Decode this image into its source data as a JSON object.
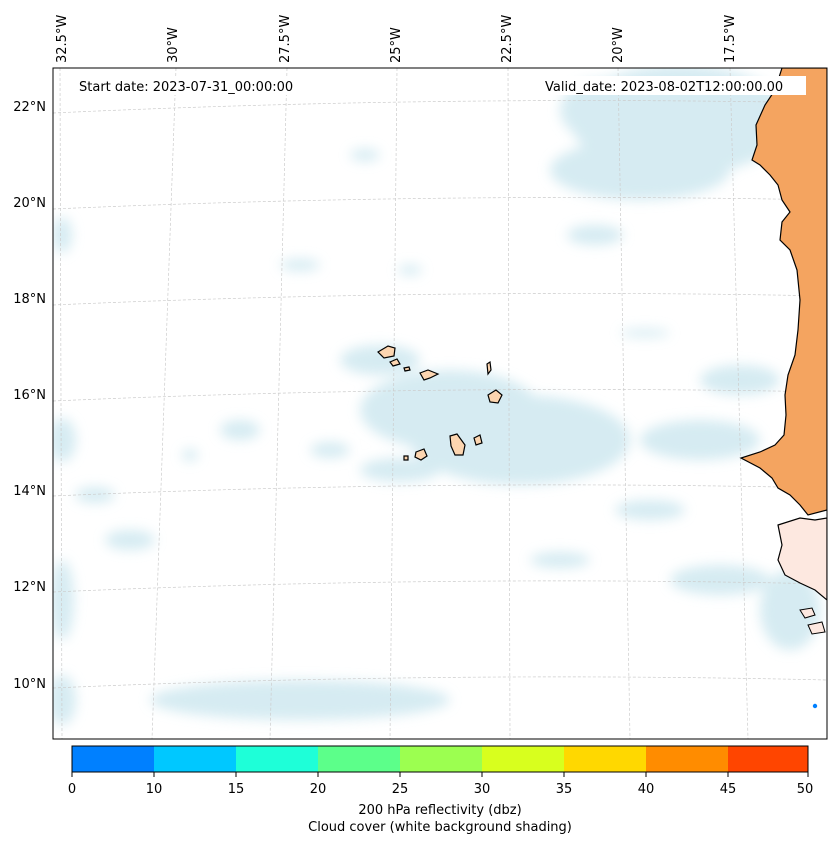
{
  "map": {
    "start_date": "Start date: 2023-07-31_00:00:00",
    "valid_date": "Valid_date: 2023-08-02T12:00:00.00",
    "lon_labels": [
      "32.5°W",
      "30°W",
      "27.5°W",
      "25°W",
      "22.5°W",
      "20°W",
      "17.5°W"
    ],
    "lat_labels": [
      "22°N",
      "20°N",
      "18°N",
      "16°N",
      "14°N",
      "12°N",
      "10°N"
    ],
    "colors": {
      "land_africa": "#f4a460",
      "land_islands": "#fcd5b0",
      "cloud": "#cfe8f0",
      "grid": "#cccccc"
    }
  },
  "colorbar": {
    "ticks": [
      "0",
      "10",
      "15",
      "20",
      "25",
      "30",
      "35",
      "40",
      "45",
      "50"
    ],
    "colors": [
      "#0080ff",
      "#00c8ff",
      "#1effd8",
      "#5cff8a",
      "#9cff50",
      "#d8ff1e",
      "#ffd800",
      "#ff8c00",
      "#ff4500"
    ],
    "label_line1": "200 hPa reflectivity (dbz)",
    "label_line2": "Cloud cover (white background shading)"
  }
}
